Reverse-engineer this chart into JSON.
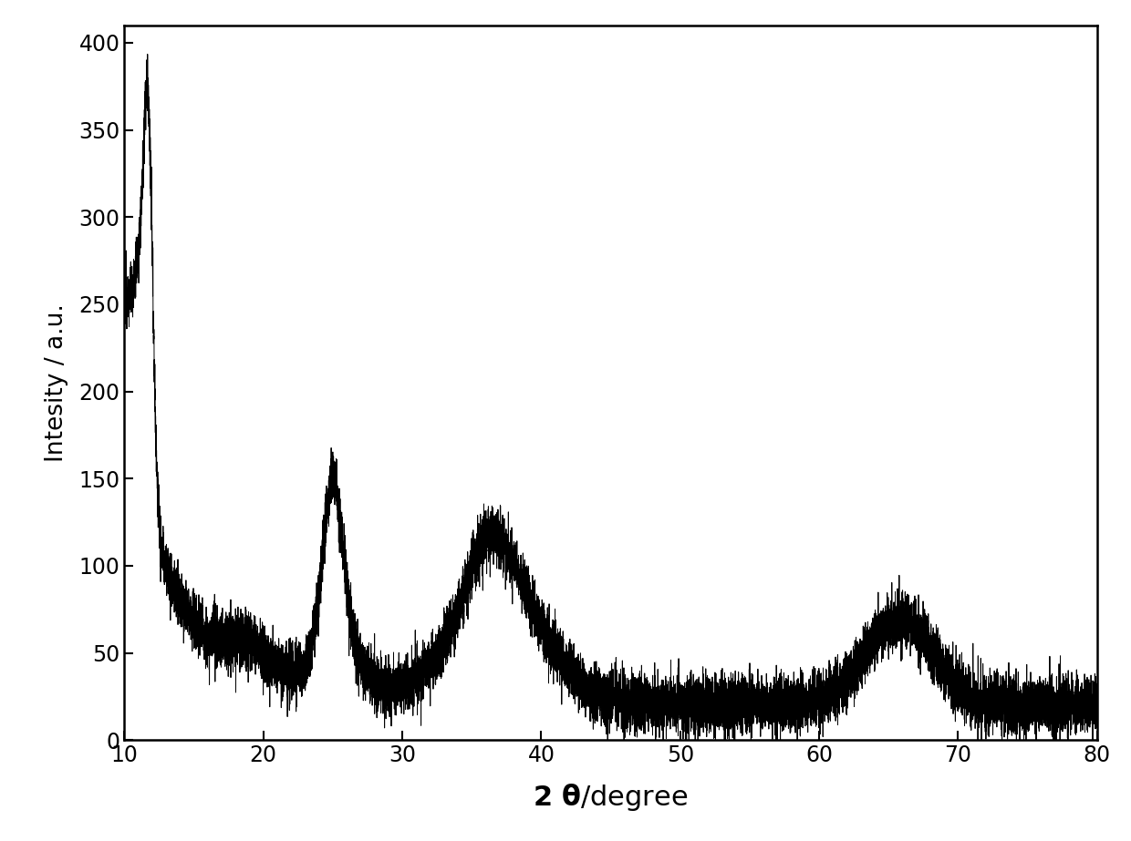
{
  "xlim": [
    10,
    80
  ],
  "ylim": [
    0,
    410
  ],
  "xticks": [
    10,
    20,
    30,
    40,
    50,
    60,
    70,
    80
  ],
  "yticks": [
    0,
    50,
    100,
    150,
    200,
    250,
    300,
    350,
    400
  ],
  "xlabel": "2 θ/degree",
  "ylabel": "Intesity / a.u.",
  "line_color": "#000000",
  "line_width": 0.7,
  "background_color": "#ffffff",
  "figsize": [
    12.4,
    9.23
  ],
  "dpi": 100
}
